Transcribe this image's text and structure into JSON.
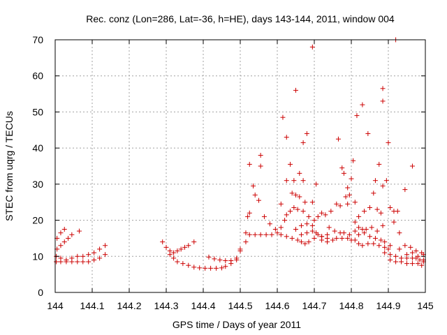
{
  "chart_data": {
    "type": "scatter",
    "title": "Rec. conz (Lon=286, Lat=-36, h=HE), days 143-144, 2011, window 004",
    "xlabel": "GPS time / Days of year 2011",
    "ylabel": "STEC from uqrg / TECUs",
    "xlim": [
      144,
      145
    ],
    "ylim": [
      0,
      70
    ],
    "xticks": [
      "144",
      "144.1",
      "144.2",
      "144.3",
      "144.4",
      "144.5",
      "144.6",
      "144.7",
      "144.8",
      "144.9",
      "145"
    ],
    "yticks": [
      "0",
      "10",
      "20",
      "30",
      "40",
      "50",
      "60",
      "70"
    ],
    "grid": true,
    "marker": "+",
    "color": "#cc0000",
    "points": [
      [
        144.005,
        15.0
      ],
      [
        144.015,
        16.5
      ],
      [
        144.025,
        17.5
      ],
      [
        144.045,
        16.0
      ],
      [
        144.065,
        17.0
      ],
      [
        144.005,
        12.0
      ],
      [
        144.015,
        13.0
      ],
      [
        144.025,
        14.0
      ],
      [
        144.035,
        15.0
      ],
      [
        144.003,
        10.0
      ],
      [
        144.015,
        9.5
      ],
      [
        144.03,
        9.0
      ],
      [
        144.045,
        9.5
      ],
      [
        144.06,
        10.0
      ],
      [
        144.075,
        10.0
      ],
      [
        144.09,
        10.5
      ],
      [
        144.105,
        11.0
      ],
      [
        144.12,
        12.0
      ],
      [
        144.135,
        13.0
      ],
      [
        144.003,
        8.5
      ],
      [
        144.015,
        8.5
      ],
      [
        144.03,
        8.5
      ],
      [
        144.045,
        8.5
      ],
      [
        144.06,
        8.5
      ],
      [
        144.075,
        8.5
      ],
      [
        144.09,
        8.5
      ],
      [
        144.105,
        9.0
      ],
      [
        144.12,
        9.5
      ],
      [
        144.135,
        10.5
      ],
      [
        144.29,
        14.0
      ],
      [
        144.3,
        12.5
      ],
      [
        144.31,
        11.5
      ],
      [
        144.32,
        11.0
      ],
      [
        144.33,
        11.5
      ],
      [
        144.34,
        12.0
      ],
      [
        144.35,
        12.5
      ],
      [
        144.36,
        13.0
      ],
      [
        144.375,
        14.0
      ],
      [
        144.31,
        10.5
      ],
      [
        144.32,
        9.5
      ],
      [
        144.33,
        8.5
      ],
      [
        144.345,
        8.0
      ],
      [
        144.36,
        7.5
      ],
      [
        144.375,
        7.0
      ],
      [
        144.39,
        6.8
      ],
      [
        144.405,
        6.7
      ],
      [
        144.42,
        6.7
      ],
      [
        144.435,
        6.7
      ],
      [
        144.45,
        6.8
      ],
      [
        144.46,
        7.2
      ],
      [
        144.475,
        8.0
      ],
      [
        144.49,
        9.0
      ],
      [
        144.415,
        9.8
      ],
      [
        144.43,
        9.3
      ],
      [
        144.445,
        9.0
      ],
      [
        144.46,
        8.8
      ],
      [
        144.475,
        8.8
      ],
      [
        144.49,
        9.5
      ],
      [
        144.5,
        11.5
      ],
      [
        144.5,
        12.0
      ],
      [
        144.515,
        14.0
      ],
      [
        144.515,
        16.5
      ],
      [
        144.525,
        16.0
      ],
      [
        144.54,
        16.0
      ],
      [
        144.555,
        16.0
      ],
      [
        144.57,
        16.0
      ],
      [
        144.585,
        16.0
      ],
      [
        144.6,
        16.5
      ],
      [
        144.52,
        21.0
      ],
      [
        144.525,
        22.0
      ],
      [
        144.535,
        29.5
      ],
      [
        144.54,
        27.0
      ],
      [
        144.55,
        25.5
      ],
      [
        144.565,
        21.0
      ],
      [
        144.58,
        19.0
      ],
      [
        144.595,
        17.5
      ],
      [
        144.525,
        35.5
      ],
      [
        144.555,
        38.0
      ],
      [
        144.555,
        35.0
      ],
      [
        144.615,
        48.5
      ],
      [
        144.625,
        43.0
      ],
      [
        144.65,
        56.0
      ],
      [
        144.67,
        41.5
      ],
      [
        144.68,
        44.0
      ],
      [
        144.695,
        68.0
      ],
      [
        144.635,
        35.5
      ],
      [
        144.66,
        33.0
      ],
      [
        144.67,
        31.0
      ],
      [
        144.705,
        30.0
      ],
      [
        144.625,
        31.0
      ],
      [
        144.645,
        31.0
      ],
      [
        144.61,
        24.5
      ],
      [
        144.625,
        21.5
      ],
      [
        144.64,
        27.5
      ],
      [
        144.65,
        27.0
      ],
      [
        144.66,
        26.5
      ],
      [
        144.675,
        25.0
      ],
      [
        144.695,
        25.0
      ],
      [
        144.61,
        18.0
      ],
      [
        144.62,
        20.0
      ],
      [
        144.635,
        22.5
      ],
      [
        144.645,
        23.5
      ],
      [
        144.655,
        23.0
      ],
      [
        144.67,
        22.5
      ],
      [
        144.685,
        21.0
      ],
      [
        144.7,
        20.0
      ],
      [
        144.61,
        16.0
      ],
      [
        144.625,
        15.5
      ],
      [
        144.64,
        15.0
      ],
      [
        144.655,
        14.5
      ],
      [
        144.665,
        14.0
      ],
      [
        144.675,
        13.5
      ],
      [
        144.685,
        14.0
      ],
      [
        144.7,
        15.0
      ],
      [
        144.65,
        17.5
      ],
      [
        144.665,
        18.5
      ],
      [
        144.68,
        19.0
      ],
      [
        144.695,
        18.5
      ],
      [
        144.705,
        16.5
      ],
      [
        144.72,
        15.5
      ],
      [
        144.735,
        15.0
      ],
      [
        144.665,
        16.0
      ],
      [
        144.68,
        16.5
      ],
      [
        144.695,
        17.0
      ],
      [
        144.71,
        16.0
      ],
      [
        144.72,
        15.5
      ],
      [
        144.735,
        16.0
      ],
      [
        144.71,
        21.0
      ],
      [
        144.72,
        22.0
      ],
      [
        144.73,
        21.5
      ],
      [
        144.745,
        22.5
      ],
      [
        144.76,
        24.5
      ],
      [
        144.77,
        24.0
      ],
      [
        144.785,
        26.5
      ],
      [
        144.795,
        27.0
      ],
      [
        144.765,
        42.5
      ],
      [
        144.775,
        34.5
      ],
      [
        144.78,
        33.0
      ],
      [
        144.79,
        29.0
      ],
      [
        144.79,
        24.5
      ],
      [
        144.8,
        31.5
      ],
      [
        144.805,
        36.5
      ],
      [
        144.72,
        14.5
      ],
      [
        144.735,
        14.0
      ],
      [
        144.75,
        14.5
      ],
      [
        144.76,
        15.0
      ],
      [
        144.775,
        15.0
      ],
      [
        144.79,
        15.0
      ],
      [
        144.8,
        14.5
      ],
      [
        144.74,
        18.0
      ],
      [
        144.755,
        17.0
      ],
      [
        144.77,
        16.5
      ],
      [
        144.78,
        16.5
      ],
      [
        144.795,
        16.0
      ],
      [
        144.81,
        17.0
      ],
      [
        144.815,
        49.0
      ],
      [
        144.83,
        52.0
      ],
      [
        144.845,
        44.0
      ],
      [
        144.865,
        31.0
      ],
      [
        144.875,
        35.5
      ],
      [
        144.885,
        29.5
      ],
      [
        144.895,
        31.0
      ],
      [
        144.81,
        25.0
      ],
      [
        144.82,
        21.0
      ],
      [
        144.835,
        22.5
      ],
      [
        144.85,
        23.5
      ],
      [
        144.86,
        27.5
      ],
      [
        144.87,
        23.0
      ],
      [
        144.88,
        22.0
      ],
      [
        144.81,
        19.5
      ],
      [
        144.82,
        18.0
      ],
      [
        144.83,
        17.5
      ],
      [
        144.84,
        17.5
      ],
      [
        144.855,
        18.0
      ],
      [
        144.87,
        17.0
      ],
      [
        144.885,
        18.5
      ],
      [
        144.81,
        14.5
      ],
      [
        144.82,
        13.5
      ],
      [
        144.83,
        13.0
      ],
      [
        144.845,
        13.5
      ],
      [
        144.86,
        13.5
      ],
      [
        144.875,
        13.0
      ],
      [
        144.89,
        12.5
      ],
      [
        144.9,
        12.0
      ],
      [
        144.82,
        16.0
      ],
      [
        144.835,
        16.5
      ],
      [
        144.85,
        15.5
      ],
      [
        144.865,
        15.0
      ],
      [
        144.88,
        14.5
      ],
      [
        144.89,
        14.0
      ],
      [
        144.905,
        13.0
      ],
      [
        144.885,
        56.5
      ],
      [
        144.885,
        53.0
      ],
      [
        144.9,
        41.5
      ],
      [
        144.92,
        70.0
      ],
      [
        144.945,
        28.5
      ],
      [
        144.965,
        35.0
      ],
      [
        144.905,
        23.5
      ],
      [
        144.915,
        22.5
      ],
      [
        144.925,
        22.5
      ],
      [
        144.915,
        19.5
      ],
      [
        144.93,
        16.5
      ],
      [
        144.89,
        11.0
      ],
      [
        144.905,
        10.5
      ],
      [
        144.92,
        10.0
      ],
      [
        144.935,
        9.5
      ],
      [
        144.95,
        9.5
      ],
      [
        144.965,
        9.5
      ],
      [
        144.98,
        10.0
      ],
      [
        144.995,
        10.5
      ],
      [
        144.905,
        9.0
      ],
      [
        144.92,
        8.5
      ],
      [
        144.935,
        8.5
      ],
      [
        144.95,
        8.0
      ],
      [
        144.965,
        8.0
      ],
      [
        144.98,
        8.0
      ],
      [
        144.995,
        8.5
      ],
      [
        144.93,
        12.0
      ],
      [
        144.945,
        13.0
      ],
      [
        144.96,
        12.5
      ],
      [
        144.975,
        11.5
      ],
      [
        144.99,
        11.0
      ],
      [
        144.995,
        9.0
      ],
      [
        144.95,
        10.5
      ],
      [
        144.965,
        11.0
      ],
      [
        144.975,
        9.5
      ],
      [
        144.985,
        9.0
      ],
      [
        144.99,
        7.5
      ]
    ]
  }
}
